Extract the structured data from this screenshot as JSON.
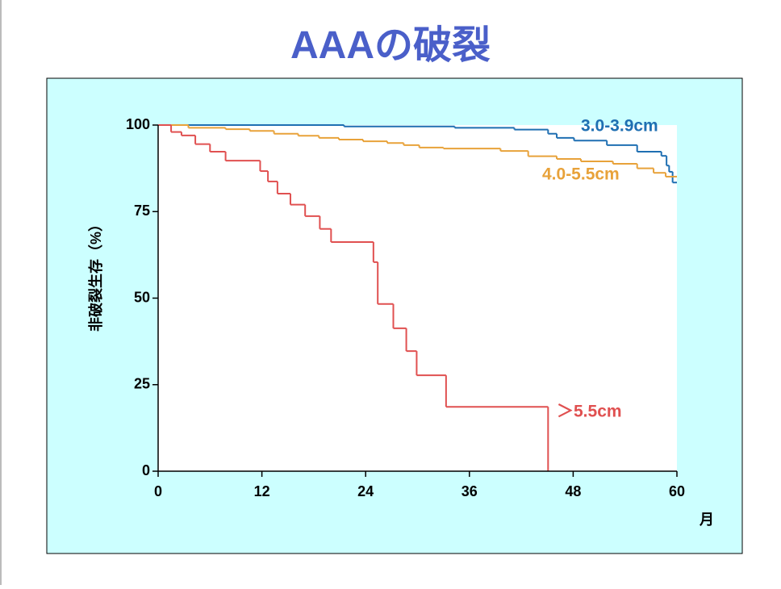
{
  "chart_data": {
    "type": "step",
    "title": "AAAの破裂",
    "y_label": "非破裂生存（%）",
    "x_label": "月",
    "xlim": [
      0,
      60
    ],
    "xticks": [
      0,
      12,
      24,
      36,
      48,
      60
    ],
    "ylim": [
      0,
      100
    ],
    "yticks": [
      0,
      25,
      50,
      75,
      100
    ],
    "grid": false,
    "series": [
      {
        "name": "3.0-3.9cm",
        "color": "#1f6fb2",
        "x": [
          0,
          21.5,
          34.3,
          41.2,
          45.1,
          46.1,
          48.1,
          51.9,
          55.4,
          58.2,
          58.8,
          59.1,
          59.5,
          60
        ],
        "values": [
          100,
          99.6,
          99.2,
          98.7,
          97.5,
          96.3,
          95.5,
          94.2,
          92.3,
          91.1,
          88.3,
          86.5,
          83.4,
          83.4
        ]
      },
      {
        "name": "4.0-5.5cm",
        "color": "#e8a23a",
        "x": [
          0,
          3.5,
          7.8,
          10.6,
          13.4,
          16.2,
          18.6,
          20.9,
          23.7,
          26.5,
          28.4,
          30.2,
          33.0,
          39.6,
          42.8,
          46.1,
          48.9,
          52.6,
          55.4,
          57.3,
          58.7,
          60
        ],
        "values": [
          100,
          99.2,
          98.8,
          98.3,
          97.5,
          96.9,
          96.3,
          95.8,
          95.3,
          94.8,
          94.2,
          93.5,
          93.2,
          92.5,
          91,
          90.2,
          89.5,
          88.8,
          87.5,
          86.2,
          85.1,
          85.1
        ]
      },
      {
        "name": "＞5.5cm",
        "color": "#e05050",
        "x": [
          0,
          1.5,
          2.7,
          4.3,
          6.0,
          7.8,
          11.8,
          12.7,
          13.8,
          15.3,
          17.0,
          18.7,
          20.0,
          24.9,
          25.4,
          27.2,
          28.7,
          29.9,
          33.3,
          45.1
        ],
        "values": [
          100,
          98,
          97,
          94.5,
          92.3,
          89.7,
          86.7,
          83.7,
          80.2,
          77,
          73.7,
          70,
          66.2,
          60.4,
          48.3,
          41.3,
          34.7,
          27.7,
          18.6,
          0
        ]
      }
    ]
  }
}
